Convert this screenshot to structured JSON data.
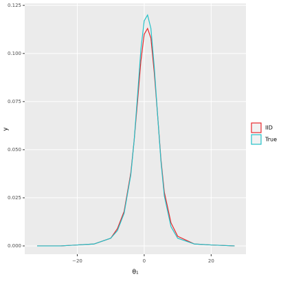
{
  "chart_data": {
    "type": "line",
    "x_label": "θ₁",
    "y_label": "y",
    "x": [
      -32,
      -25,
      -20,
      -15,
      -10,
      -8,
      -6,
      -4,
      -3,
      -2,
      -1,
      0,
      1,
      2,
      3,
      4,
      5,
      6,
      8,
      10,
      15,
      20,
      27
    ],
    "series": [
      {
        "name": "IID",
        "color": "#e8262a",
        "values": [
          0,
          0,
          0.0005,
          0.001,
          0.004,
          0.009,
          0.018,
          0.038,
          0.055,
          0.075,
          0.096,
          0.11,
          0.113,
          0.108,
          0.09,
          0.068,
          0.045,
          0.028,
          0.012,
          0.005,
          0.001,
          0.0005,
          0
        ]
      },
      {
        "name": "True",
        "color": "#22c0c8",
        "values": [
          0,
          0,
          0.0005,
          0.001,
          0.004,
          0.008,
          0.017,
          0.037,
          0.055,
          0.078,
          0.102,
          0.117,
          0.12,
          0.113,
          0.093,
          0.068,
          0.044,
          0.026,
          0.01,
          0.004,
          0.001,
          0.0005,
          0
        ]
      }
    ],
    "xlim": [
      -35.7,
      30.4
    ],
    "ylim": [
      -0.0043,
      0.126
    ],
    "xticks": [
      {
        "value": -20,
        "label": "−20"
      },
      0,
      20
    ],
    "yticks": [
      {
        "value": 0,
        "label": "0.000"
      },
      0.025,
      {
        "value": 0.05,
        "label": "0.050"
      },
      0.075,
      {
        "value": 0.1,
        "label": "0.100"
      },
      0.125
    ],
    "grid": true,
    "legend": "right"
  }
}
